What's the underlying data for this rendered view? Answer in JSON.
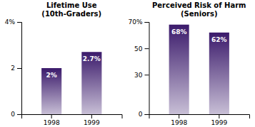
{
  "chart_data": [
    {
      "type": "bar",
      "title": "Lifetime Use",
      "subtitle": "(10th-Graders)",
      "categories": [
        "1998",
        "1999"
      ],
      "values": [
        2.0,
        2.7
      ],
      "value_labels": [
        "2%",
        "2.7%"
      ],
      "data_labels": true,
      "color": "#3b1a6b",
      "grid": false,
      "ylim": [
        0,
        4
      ],
      "yticks": [
        0,
        2,
        {
          "value": 4,
          "label": "4%"
        }
      ]
    },
    {
      "type": "bar",
      "title": "Perceived Risk of Harm",
      "subtitle": "(Seniors)",
      "categories": [
        "1998",
        "1999"
      ],
      "values": [
        68,
        62
      ],
      "value_labels": [
        "68%",
        "62%"
      ],
      "data_labels": true,
      "color": "#3b1a6b",
      "grid": false,
      "ylim": [
        0,
        70
      ],
      "yticks": [
        0,
        30,
        50,
        {
          "value": 70,
          "label": "70%"
        }
      ]
    }
  ]
}
